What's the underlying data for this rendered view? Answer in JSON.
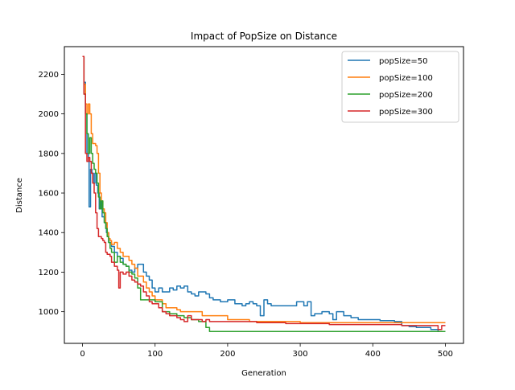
{
  "chart_data": {
    "type": "line",
    "title": "Impact of PopSize on Distance",
    "xlabel": "Generation",
    "ylabel": "Distance",
    "xlim": [
      -25,
      525
    ],
    "ylim": [
      840,
      2340
    ],
    "xticks": [
      0,
      100,
      200,
      300,
      400,
      500
    ],
    "yticks": [
      1000,
      1200,
      1400,
      1600,
      1800,
      2000,
      2200
    ],
    "grid": false,
    "legend_position": "top-right",
    "series": [
      {
        "name": "popSize=50",
        "color": "#1f77b4",
        "points": [
          [
            0,
            2290
          ],
          [
            2,
            2160
          ],
          [
            4,
            2000
          ],
          [
            6,
            1800
          ],
          [
            8,
            1760
          ],
          [
            9,
            1530
          ],
          [
            11,
            1720
          ],
          [
            13,
            1700
          ],
          [
            15,
            1650
          ],
          [
            17,
            1700
          ],
          [
            19,
            1640
          ],
          [
            21,
            1600
          ],
          [
            23,
            1520
          ],
          [
            25,
            1560
          ],
          [
            27,
            1480
          ],
          [
            30,
            1450
          ],
          [
            33,
            1400
          ],
          [
            36,
            1350
          ],
          [
            40,
            1330
          ],
          [
            44,
            1300
          ],
          [
            48,
            1280
          ],
          [
            52,
            1270
          ],
          [
            56,
            1240
          ],
          [
            60,
            1230
          ],
          [
            64,
            1210
          ],
          [
            68,
            1200
          ],
          [
            72,
            1220
          ],
          [
            76,
            1240
          ],
          [
            80,
            1240
          ],
          [
            84,
            1200
          ],
          [
            88,
            1180
          ],
          [
            92,
            1160
          ],
          [
            96,
            1120
          ],
          [
            100,
            1100
          ],
          [
            105,
            1120
          ],
          [
            110,
            1100
          ],
          [
            115,
            1100
          ],
          [
            120,
            1120
          ],
          [
            125,
            1110
          ],
          [
            130,
            1130
          ],
          [
            135,
            1120
          ],
          [
            140,
            1130
          ],
          [
            145,
            1100
          ],
          [
            150,
            1090
          ],
          [
            155,
            1080
          ],
          [
            160,
            1100
          ],
          [
            165,
            1100
          ],
          [
            170,
            1090
          ],
          [
            175,
            1070
          ],
          [
            180,
            1060
          ],
          [
            185,
            1060
          ],
          [
            190,
            1050
          ],
          [
            195,
            1050
          ],
          [
            200,
            1060
          ],
          [
            205,
            1060
          ],
          [
            210,
            1040
          ],
          [
            215,
            1040
          ],
          [
            220,
            1030
          ],
          [
            225,
            1040
          ],
          [
            230,
            1050
          ],
          [
            235,
            1040
          ],
          [
            240,
            1030
          ],
          [
            245,
            980
          ],
          [
            250,
            1060
          ],
          [
            255,
            1040
          ],
          [
            260,
            1030
          ],
          [
            270,
            1030
          ],
          [
            280,
            1030
          ],
          [
            290,
            1030
          ],
          [
            295,
            1050
          ],
          [
            300,
            1050
          ],
          [
            305,
            1030
          ],
          [
            310,
            1050
          ],
          [
            315,
            980
          ],
          [
            320,
            990
          ],
          [
            330,
            1000
          ],
          [
            340,
            990
          ],
          [
            345,
            960
          ],
          [
            350,
            1000
          ],
          [
            360,
            980
          ],
          [
            370,
            970
          ],
          [
            380,
            960
          ],
          [
            390,
            960
          ],
          [
            400,
            960
          ],
          [
            410,
            955
          ],
          [
            420,
            955
          ],
          [
            430,
            950
          ],
          [
            440,
            930
          ],
          [
            450,
            925
          ],
          [
            460,
            920
          ],
          [
            470,
            920
          ],
          [
            480,
            910
          ],
          [
            490,
            900
          ],
          [
            500,
            900
          ]
        ]
      },
      {
        "name": "popSize=100",
        "color": "#ff7f0e",
        "points": [
          [
            0,
            2290
          ],
          [
            2,
            2150
          ],
          [
            4,
            2050
          ],
          [
            6,
            2000
          ],
          [
            8,
            2050
          ],
          [
            10,
            2000
          ],
          [
            12,
            1900
          ],
          [
            14,
            1850
          ],
          [
            16,
            1850
          ],
          [
            18,
            1840
          ],
          [
            20,
            1800
          ],
          [
            22,
            1700
          ],
          [
            24,
            1600
          ],
          [
            26,
            1560
          ],
          [
            28,
            1520
          ],
          [
            30,
            1500
          ],
          [
            32,
            1450
          ],
          [
            34,
            1400
          ],
          [
            36,
            1370
          ],
          [
            38,
            1360
          ],
          [
            40,
            1340
          ],
          [
            44,
            1350
          ],
          [
            48,
            1320
          ],
          [
            52,
            1300
          ],
          [
            56,
            1280
          ],
          [
            60,
            1280
          ],
          [
            64,
            1260
          ],
          [
            68,
            1240
          ],
          [
            72,
            1220
          ],
          [
            76,
            1180
          ],
          [
            80,
            1180
          ],
          [
            84,
            1150
          ],
          [
            88,
            1120
          ],
          [
            92,
            1100
          ],
          [
            96,
            1080
          ],
          [
            100,
            1060
          ],
          [
            105,
            1060
          ],
          [
            110,
            1040
          ],
          [
            115,
            1020
          ],
          [
            120,
            1020
          ],
          [
            125,
            1020
          ],
          [
            130,
            1010
          ],
          [
            135,
            1000
          ],
          [
            140,
            1000
          ],
          [
            150,
            1000
          ],
          [
            160,
            1000
          ],
          [
            165,
            980
          ],
          [
            170,
            980
          ],
          [
            180,
            980
          ],
          [
            190,
            980
          ],
          [
            200,
            960
          ],
          [
            210,
            960
          ],
          [
            220,
            960
          ],
          [
            230,
            950
          ],
          [
            240,
            950
          ],
          [
            260,
            950
          ],
          [
            280,
            950
          ],
          [
            300,
            945
          ],
          [
            320,
            945
          ],
          [
            340,
            945
          ],
          [
            360,
            945
          ],
          [
            380,
            945
          ],
          [
            400,
            945
          ],
          [
            420,
            945
          ],
          [
            440,
            945
          ],
          [
            460,
            945
          ],
          [
            480,
            945
          ],
          [
            500,
            945
          ]
        ]
      },
      {
        "name": "popSize=200",
        "color": "#2ca02c",
        "points": [
          [
            0,
            2290
          ],
          [
            2,
            2100
          ],
          [
            4,
            2000
          ],
          [
            6,
            1900
          ],
          [
            8,
            1800
          ],
          [
            10,
            1880
          ],
          [
            12,
            1800
          ],
          [
            14,
            1750
          ],
          [
            16,
            1720
          ],
          [
            18,
            1700
          ],
          [
            20,
            1650
          ],
          [
            22,
            1580
          ],
          [
            24,
            1520
          ],
          [
            26,
            1560
          ],
          [
            28,
            1500
          ],
          [
            30,
            1450
          ],
          [
            32,
            1420
          ],
          [
            34,
            1380
          ],
          [
            36,
            1350
          ],
          [
            38,
            1320
          ],
          [
            40,
            1300
          ],
          [
            44,
            1250
          ],
          [
            48,
            1280
          ],
          [
            52,
            1250
          ],
          [
            56,
            1240
          ],
          [
            60,
            1230
          ],
          [
            64,
            1200
          ],
          [
            68,
            1190
          ],
          [
            72,
            1170
          ],
          [
            76,
            1120
          ],
          [
            80,
            1060
          ],
          [
            85,
            1060
          ],
          [
            90,
            1060
          ],
          [
            95,
            1060
          ],
          [
            100,
            1050
          ],
          [
            105,
            1050
          ],
          [
            110,
            1000
          ],
          [
            115,
            1000
          ],
          [
            120,
            990
          ],
          [
            130,
            980
          ],
          [
            140,
            970
          ],
          [
            150,
            960
          ],
          [
            160,
            950
          ],
          [
            170,
            920
          ],
          [
            175,
            900
          ],
          [
            180,
            900
          ],
          [
            200,
            900
          ],
          [
            220,
            900
          ],
          [
            240,
            900
          ],
          [
            260,
            900
          ],
          [
            280,
            900
          ],
          [
            300,
            900
          ],
          [
            320,
            900
          ],
          [
            340,
            900
          ],
          [
            360,
            900
          ],
          [
            380,
            900
          ],
          [
            400,
            900
          ],
          [
            420,
            900
          ],
          [
            440,
            900
          ],
          [
            460,
            900
          ],
          [
            480,
            900
          ],
          [
            500,
            900
          ]
        ]
      },
      {
        "name": "popSize=300",
        "color": "#d62728",
        "points": [
          [
            0,
            2290
          ],
          [
            2,
            2100
          ],
          [
            4,
            1800
          ],
          [
            6,
            1760
          ],
          [
            8,
            1780
          ],
          [
            10,
            1760
          ],
          [
            12,
            1700
          ],
          [
            14,
            1650
          ],
          [
            16,
            1600
          ],
          [
            18,
            1500
          ],
          [
            20,
            1420
          ],
          [
            22,
            1380
          ],
          [
            24,
            1380
          ],
          [
            26,
            1370
          ],
          [
            28,
            1360
          ],
          [
            30,
            1350
          ],
          [
            32,
            1300
          ],
          [
            34,
            1290
          ],
          [
            36,
            1290
          ],
          [
            38,
            1280
          ],
          [
            40,
            1250
          ],
          [
            44,
            1230
          ],
          [
            48,
            1210
          ],
          [
            50,
            1120
          ],
          [
            52,
            1200
          ],
          [
            56,
            1190
          ],
          [
            60,
            1200
          ],
          [
            64,
            1180
          ],
          [
            68,
            1160
          ],
          [
            72,
            1150
          ],
          [
            76,
            1140
          ],
          [
            80,
            1130
          ],
          [
            84,
            1100
          ],
          [
            88,
            1080
          ],
          [
            92,
            1050
          ],
          [
            96,
            1040
          ],
          [
            100,
            1040
          ],
          [
            105,
            1020
          ],
          [
            110,
            1000
          ],
          [
            115,
            990
          ],
          [
            120,
            980
          ],
          [
            125,
            980
          ],
          [
            130,
            970
          ],
          [
            135,
            960
          ],
          [
            140,
            950
          ],
          [
            145,
            980
          ],
          [
            150,
            960
          ],
          [
            155,
            960
          ],
          [
            160,
            960
          ],
          [
            165,
            950
          ],
          [
            170,
            960
          ],
          [
            175,
            950
          ],
          [
            180,
            950
          ],
          [
            190,
            950
          ],
          [
            200,
            950
          ],
          [
            220,
            950
          ],
          [
            240,
            945
          ],
          [
            260,
            945
          ],
          [
            280,
            940
          ],
          [
            300,
            940
          ],
          [
            320,
            940
          ],
          [
            340,
            935
          ],
          [
            360,
            935
          ],
          [
            380,
            935
          ],
          [
            400,
            935
          ],
          [
            420,
            935
          ],
          [
            440,
            930
          ],
          [
            460,
            930
          ],
          [
            480,
            930
          ],
          [
            490,
            910
          ],
          [
            495,
            930
          ],
          [
            500,
            930
          ]
        ]
      }
    ]
  }
}
